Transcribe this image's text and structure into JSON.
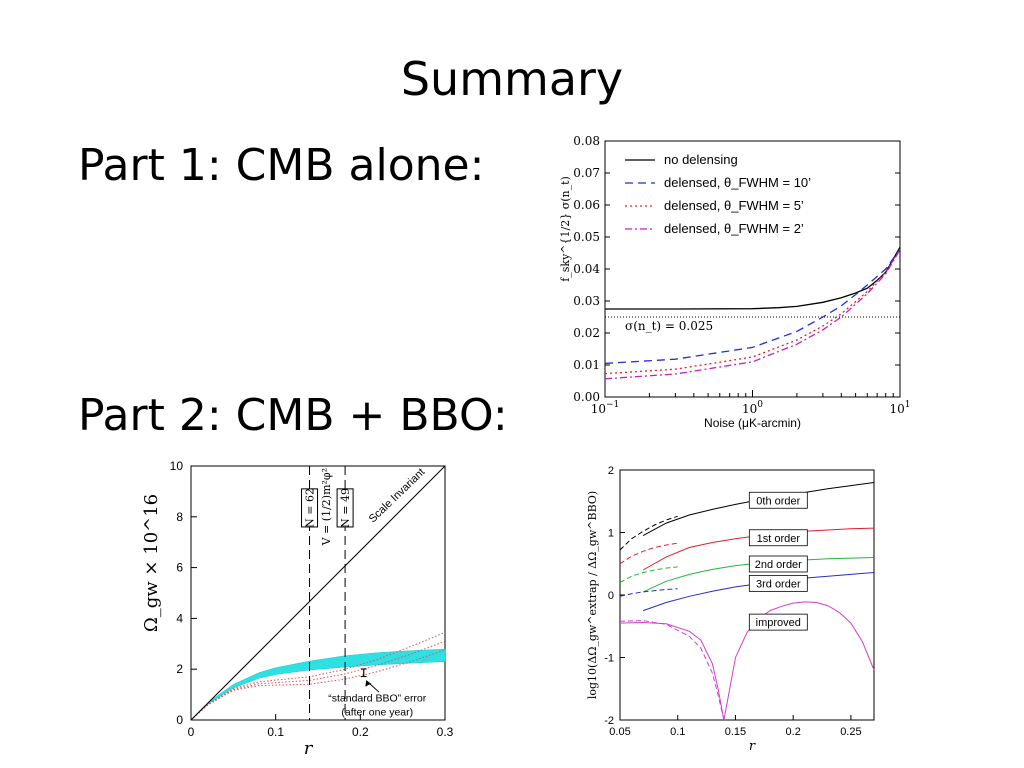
{
  "slide": {
    "title": "Summary",
    "part1": "Part 1: CMB alone:",
    "part2": "Part 2: CMB + BBO:"
  },
  "chart_data": [
    {
      "id": "noise",
      "type": "line",
      "xscale": "log",
      "xlim": [
        0.1,
        10
      ],
      "ylim": [
        0,
        0.08
      ],
      "xlabel": "Noise (μK-arcmin)",
      "ylabel": "f_sky^{1/2} σ(n_t)",
      "xticks": [
        {
          "v": 0.1,
          "b": "10",
          "e": "−1"
        },
        {
          "v": 1,
          "b": "10",
          "e": "0"
        },
        {
          "v": 10,
          "b": "10",
          "e": "1"
        }
      ],
      "yticks": [
        "0.00",
        "0.01",
        "0.02",
        "0.03",
        "0.04",
        "0.05",
        "0.06",
        "0.07",
        "0.08"
      ],
      "legend_position": "top-left",
      "annotation": "σ(n_t) = 0.025",
      "series": [
        {
          "name": "no delensing",
          "color": "#000000",
          "dash": "none",
          "x": [
            0.1,
            0.3,
            1,
            1.5,
            2,
            3,
            4,
            5,
            6,
            7,
            8,
            10
          ],
          "y": [
            0.0275,
            0.0275,
            0.0276,
            0.0279,
            0.0283,
            0.0296,
            0.031,
            0.0325,
            0.034,
            0.0365,
            0.039,
            0.0468
          ]
        },
        {
          "name": "delensed, θ_FWHM = 10’",
          "color": "#1f2fd6",
          "dash": "8,5",
          "x": [
            0.1,
            0.3,
            1,
            2,
            3,
            4,
            5,
            6,
            8,
            10
          ],
          "y": [
            0.0105,
            0.0118,
            0.0155,
            0.0205,
            0.025,
            0.0285,
            0.032,
            0.035,
            0.04,
            0.0462
          ]
        },
        {
          "name": "delensed, θ_FWHM = 5’",
          "color": "#e0202a",
          "dash": "2,3",
          "x": [
            0.1,
            0.3,
            1,
            2,
            3,
            4,
            5,
            6,
            8,
            10
          ],
          "y": [
            0.0073,
            0.0087,
            0.0125,
            0.0178,
            0.0222,
            0.026,
            0.0298,
            0.033,
            0.039,
            0.0462
          ]
        },
        {
          "name": "delensed, θ_FWHM = 2’",
          "color": "#c81ec8",
          "dash": "7,3,2,3",
          "x": [
            0.1,
            0.3,
            1,
            2,
            3,
            4,
            5,
            6,
            8,
            10
          ],
          "y": [
            0.0057,
            0.0072,
            0.011,
            0.0165,
            0.021,
            0.025,
            0.029,
            0.0323,
            0.0385,
            0.046
          ]
        }
      ],
      "hline": 0.025
    },
    {
      "id": "omega",
      "type": "line",
      "xlim": [
        0,
        0.3
      ],
      "ylim": [
        0,
        10
      ],
      "xlabel": "r",
      "ylabel": "Ω_gw × 10^16",
      "xticks": [
        "0",
        "0.1",
        "0.2",
        "0.3"
      ],
      "yticks": [
        "0",
        "2",
        "4",
        "6",
        "8",
        "10"
      ],
      "scale_invariant_label": "Scale Invariant",
      "vlines": [
        {
          "x": 0.14,
          "label": "N = 62"
        },
        {
          "x": 0.182,
          "label": "N = 49"
        }
      ],
      "potential_label": "V = (1/2)m²φ²",
      "error_annotation_1": "“standard BBO” error",
      "error_annotation_2": "(after one year)",
      "scale_invariant": {
        "x": [
          0,
          0.3
        ],
        "y": [
          0,
          10
        ]
      },
      "band": {
        "x": [
          0,
          0.02,
          0.05,
          0.08,
          0.1,
          0.14,
          0.18,
          0.22,
          0.26,
          0.3
        ],
        "lower": [
          0,
          0.62,
          1.26,
          1.64,
          1.79,
          1.97,
          2.08,
          2.17,
          2.24,
          2.3
        ],
        "upper": [
          0,
          0.68,
          1.4,
          1.86,
          2.06,
          2.32,
          2.52,
          2.65,
          2.73,
          2.79
        ]
      },
      "dotted": [
        {
          "x": [
            0,
            0.02,
            0.05,
            0.08,
            0.1,
            0.14,
            0.18,
            0.22,
            0.26,
            0.3
          ],
          "y": [
            0,
            0.6,
            1.17,
            1.35,
            1.37,
            1.41,
            1.6,
            1.9,
            2.3,
            2.75
          ]
        },
        {
          "x": [
            0,
            0.02,
            0.05,
            0.08,
            0.1,
            0.14,
            0.18,
            0.22,
            0.26,
            0.3
          ],
          "y": [
            0,
            0.6,
            1.2,
            1.42,
            1.47,
            1.56,
            1.8,
            2.15,
            2.6,
            3.1
          ]
        },
        {
          "x": [
            0,
            0.02,
            0.05,
            0.08,
            0.1,
            0.14,
            0.18,
            0.22,
            0.26,
            0.3
          ],
          "y": [
            0,
            0.61,
            1.24,
            1.5,
            1.57,
            1.7,
            1.98,
            2.38,
            2.9,
            3.45
          ]
        }
      ],
      "errorbar": {
        "x": 0.204,
        "y": 1.86,
        "err": 0.15
      }
    },
    {
      "id": "order",
      "type": "line",
      "xlim": [
        0.05,
        0.27
      ],
      "ylim": [
        -2,
        2
      ],
      "xlabel": "r",
      "ylabel": "log10(ΔΩ_gw^extrap / ΔΩ_gw^BBO)",
      "xticks": [
        "0.05",
        "0.1",
        "0.15",
        "0.2",
        "0.25"
      ],
      "yticks": [
        "-2",
        "-1",
        "0",
        "1",
        "2"
      ],
      "labels": [
        "0th order",
        "1st order",
        "2nd order",
        "3rd order",
        "improved"
      ],
      "series": [
        {
          "name": "0th order",
          "color": "#000000",
          "x": [
            0.07,
            0.09,
            0.11,
            0.13,
            0.15,
            0.17,
            0.19,
            0.21,
            0.23,
            0.25,
            0.27
          ],
          "y": [
            0.95,
            1.15,
            1.28,
            1.37,
            1.45,
            1.52,
            1.58,
            1.64,
            1.7,
            1.75,
            1.8
          ],
          "dash_x": [
            0.05,
            0.06,
            0.07,
            0.08,
            0.09,
            0.1
          ],
          "dash_y": [
            0.72,
            0.9,
            1.02,
            1.12,
            1.2,
            1.26
          ]
        },
        {
          "name": "1st order",
          "color": "#e0202a",
          "x": [
            0.07,
            0.09,
            0.11,
            0.13,
            0.15,
            0.17,
            0.19,
            0.21,
            0.23,
            0.25,
            0.27
          ],
          "y": [
            0.4,
            0.61,
            0.76,
            0.84,
            0.9,
            0.95,
            0.99,
            1.02,
            1.04,
            1.06,
            1.07
          ],
          "dash_x": [
            0.05,
            0.06,
            0.07,
            0.08,
            0.09,
            0.1
          ],
          "dash_y": [
            0.5,
            0.62,
            0.7,
            0.76,
            0.8,
            0.83
          ]
        },
        {
          "name": "2nd order",
          "color": "#22b83a",
          "x": [
            0.07,
            0.09,
            0.11,
            0.13,
            0.15,
            0.17,
            0.19,
            0.21,
            0.23,
            0.25,
            0.27
          ],
          "y": [
            0.05,
            0.22,
            0.33,
            0.41,
            0.47,
            0.51,
            0.54,
            0.56,
            0.58,
            0.59,
            0.6
          ],
          "dash_x": [
            0.05,
            0.06,
            0.07,
            0.08,
            0.09,
            0.1
          ],
          "dash_y": [
            0.2,
            0.3,
            0.36,
            0.4,
            0.43,
            0.45
          ]
        },
        {
          "name": "3rd order",
          "color": "#2030c8",
          "x": [
            0.07,
            0.09,
            0.11,
            0.13,
            0.15,
            0.17,
            0.19,
            0.21,
            0.23,
            0.25,
            0.27
          ],
          "y": [
            -0.25,
            -0.12,
            -0.02,
            0.06,
            0.13,
            0.18,
            0.23,
            0.27,
            0.3,
            0.33,
            0.36
          ],
          "dash_x": [
            0.05,
            0.06,
            0.07,
            0.08,
            0.09,
            0.1
          ],
          "dash_y": [
            -0.02,
            0.02,
            0.05,
            0.07,
            0.09,
            0.1
          ]
        },
        {
          "name": "improved",
          "color": "#d13fd1",
          "x": [
            0.05,
            0.07,
            0.09,
            0.11,
            0.12,
            0.13,
            0.135,
            0.14,
            0.145,
            0.15,
            0.16,
            0.17,
            0.18,
            0.19,
            0.2,
            0.21,
            0.22,
            0.23,
            0.24,
            0.25,
            0.26,
            0.27
          ],
          "y": [
            -0.45,
            -0.44,
            -0.46,
            -0.58,
            -0.72,
            -1.1,
            -1.5,
            -2.0,
            -1.5,
            -1.0,
            -0.6,
            -0.38,
            -0.25,
            -0.18,
            -0.13,
            -0.11,
            -0.12,
            -0.17,
            -0.28,
            -0.45,
            -0.75,
            -1.2
          ],
          "dash_x": [
            0.05,
            0.07,
            0.09,
            0.11,
            0.12,
            0.13,
            0.135,
            0.14
          ],
          "dash_y": [
            -0.42,
            -0.41,
            -0.47,
            -0.66,
            -0.85,
            -1.25,
            -1.6,
            -2.0
          ]
        }
      ]
    }
  ]
}
